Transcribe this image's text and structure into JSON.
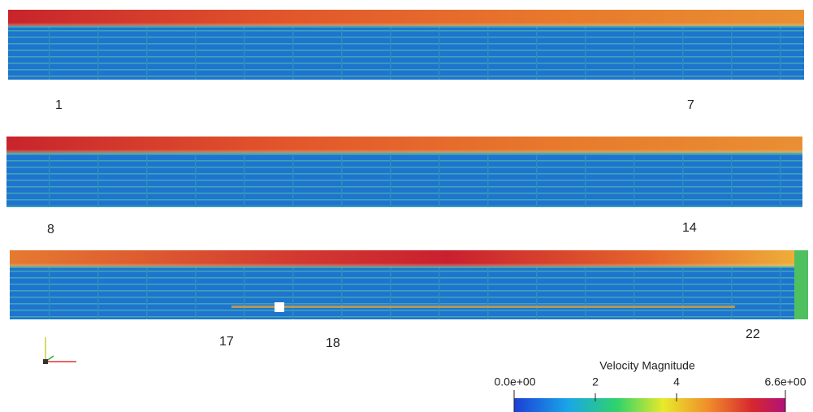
{
  "panels": [
    {
      "labels": [
        "1",
        "7"
      ]
    },
    {
      "labels": [
        "8",
        "14"
      ]
    },
    {
      "labels": [
        "17",
        "18",
        "22"
      ]
    }
  ],
  "colorbar": {
    "title": "Velocity Magnitude",
    "ticks": [
      "0.0e+00",
      "2",
      "4",
      "6.6e+00"
    ]
  }
}
